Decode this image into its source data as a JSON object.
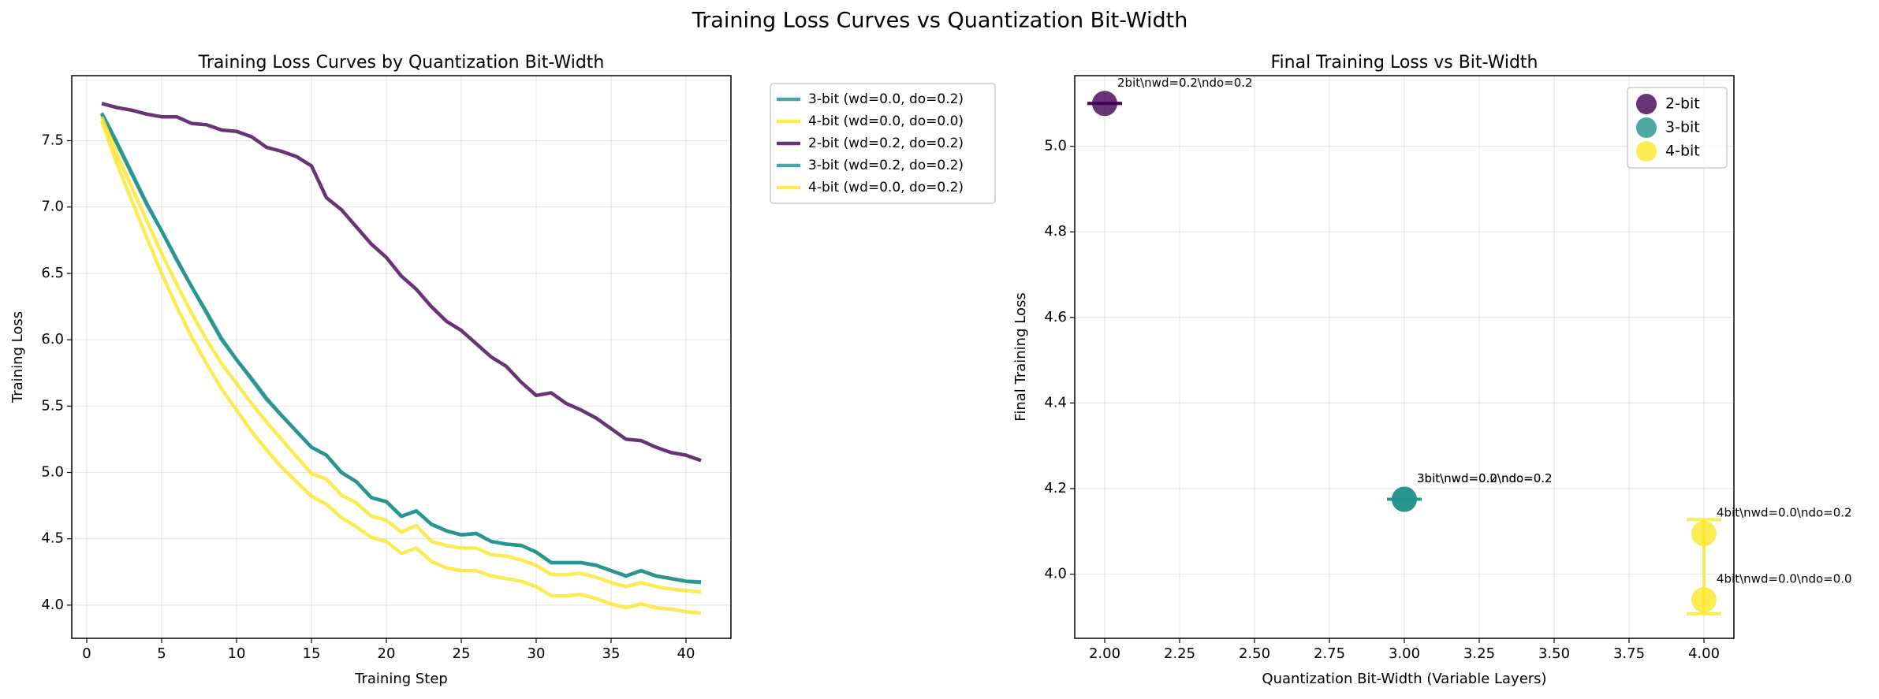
{
  "title": "Training Loss Curves vs Quantization Bit-Width",
  "chart_data": [
    {
      "type": "line",
      "title": "Training Loss Curves by Quantization Bit-Width",
      "xlabel": "Training Step",
      "ylabel": "Training Loss",
      "x": [
        1,
        2,
        3,
        4,
        5,
        6,
        7,
        8,
        9,
        10,
        11,
        12,
        13,
        14,
        15,
        16,
        17,
        18,
        19,
        20,
        21,
        22,
        23,
        24,
        25,
        26,
        27,
        28,
        29,
        30,
        31,
        32,
        33,
        34,
        35,
        36,
        37,
        38,
        39,
        40,
        41
      ],
      "xlim": [
        -1,
        43
      ],
      "ylim": [
        3.75,
        7.99
      ],
      "xticks": [
        0,
        5,
        10,
        15,
        20,
        25,
        30,
        35,
        40
      ],
      "yticks": [
        {
          "value": 4,
          "label": "4.0"
        },
        4.5,
        {
          "value": 5,
          "label": "5.0"
        },
        5.5,
        {
          "value": 6,
          "label": "6.0"
        },
        6.5,
        {
          "value": 7,
          "label": "7.0"
        },
        7.5
      ],
      "grid": true,
      "legend": "outside right",
      "series": [
        {
          "name": "3-bit (wd=0.0, do=0.2)",
          "color": "#21918c",
          "values": [
            7.7,
            7.48,
            7.25,
            7.02,
            6.82,
            6.6,
            6.4,
            6.2,
            6.0,
            5.85,
            5.7,
            5.55,
            5.43,
            5.31,
            5.19,
            5.13,
            5.0,
            4.93,
            4.81,
            4.78,
            4.67,
            4.71,
            4.61,
            4.56,
            4.53,
            4.54,
            4.48,
            4.46,
            4.45,
            4.4,
            4.32,
            4.32,
            4.32,
            4.3,
            4.26,
            4.22,
            4.26,
            4.22,
            4.2,
            4.18,
            4.17
          ]
        },
        {
          "name": "4-bit (wd=0.0, do=0.0)",
          "color": "#fde725",
          "values": [
            7.65,
            7.33,
            7.05,
            6.77,
            6.5,
            6.25,
            6.02,
            5.82,
            5.63,
            5.47,
            5.31,
            5.17,
            5.04,
            4.93,
            4.82,
            4.76,
            4.66,
            4.59,
            4.51,
            4.48,
            4.39,
            4.43,
            4.33,
            4.28,
            4.26,
            4.26,
            4.22,
            4.2,
            4.18,
            4.14,
            4.07,
            4.07,
            4.08,
            4.05,
            4.01,
            3.98,
            4.01,
            3.98,
            3.97,
            3.95,
            3.94
          ]
        },
        {
          "name": "2-bit (wd=0.2, do=0.2)",
          "color": "#440154",
          "values": [
            7.78,
            7.75,
            7.73,
            7.7,
            7.68,
            7.68,
            7.63,
            7.62,
            7.58,
            7.57,
            7.53,
            7.45,
            7.42,
            7.38,
            7.31,
            7.07,
            6.98,
            6.85,
            6.72,
            6.62,
            6.48,
            6.38,
            6.25,
            6.14,
            6.07,
            5.97,
            5.87,
            5.8,
            5.68,
            5.58,
            5.6,
            5.52,
            5.47,
            5.41,
            5.33,
            5.25,
            5.24,
            5.19,
            5.15,
            5.13,
            5.09
          ]
        },
        {
          "name": "3-bit (wd=0.2, do=0.2)",
          "color": "#21918c",
          "values": [
            7.71,
            7.49,
            7.26,
            7.03,
            6.82,
            6.61,
            6.4,
            6.21,
            6.01,
            5.85,
            5.71,
            5.56,
            5.43,
            5.31,
            5.19,
            5.13,
            5.0,
            4.93,
            4.81,
            4.78,
            4.67,
            4.71,
            4.61,
            4.56,
            4.53,
            4.54,
            4.48,
            4.46,
            4.45,
            4.4,
            4.32,
            4.32,
            4.32,
            4.3,
            4.26,
            4.22,
            4.26,
            4.22,
            4.2,
            4.18,
            4.175
          ]
        },
        {
          "name": "4-bit (wd=0.0, do=0.2)",
          "color": "#fde725",
          "values": [
            7.68,
            7.4,
            7.15,
            6.9,
            6.65,
            6.42,
            6.2,
            6.0,
            5.82,
            5.67,
            5.52,
            5.38,
            5.25,
            5.12,
            4.99,
            4.95,
            4.83,
            4.77,
            4.67,
            4.64,
            4.55,
            4.6,
            4.48,
            4.45,
            4.43,
            4.43,
            4.38,
            4.37,
            4.34,
            4.3,
            4.23,
            4.23,
            4.24,
            4.21,
            4.17,
            4.14,
            4.17,
            4.14,
            4.12,
            4.11,
            4.1
          ]
        }
      ]
    },
    {
      "type": "scatter",
      "title": "Final Training Loss vs Bit-Width",
      "xlabel": "Quantization Bit-Width (Variable Layers)",
      "ylabel": "Final Training Loss",
      "xlim": [
        1.9,
        4.1
      ],
      "ylim": [
        3.85,
        5.165
      ],
      "xticks": [
        {
          "value": 2,
          "label": "2.00"
        },
        2.25,
        {
          "value": 2.5,
          "label": "2.50"
        },
        2.75,
        {
          "value": 3,
          "label": "3.00"
        },
        3.25,
        {
          "value": 3.5,
          "label": "3.50"
        },
        3.75,
        {
          "value": 4,
          "label": "4.00"
        }
      ],
      "yticks": [
        {
          "value": 4,
          "label": "4.0"
        },
        4.2,
        4.4,
        4.6,
        4.8,
        {
          "value": 5,
          "label": "5.0"
        }
      ],
      "grid": true,
      "legend": "upper right",
      "series": [
        {
          "name": "2-bit",
          "color": "#440154",
          "x": [
            2
          ],
          "values": [
            5.1
          ],
          "labels": [
            "2bit\\nwd=0.2\\ndo=0.2"
          ],
          "mean": 5.1,
          "error": 0
        },
        {
          "name": "3-bit",
          "color": "#21918c",
          "x": [
            3,
            3
          ],
          "values": [
            4.175,
            4.175
          ],
          "labels": [
            "3bit\\nwd=0.0\\ndo=0.2",
            "3bit\\nwd=0.2\\ndo=0.2"
          ],
          "mean": 4.175,
          "error": 0
        },
        {
          "name": "4-bit",
          "color": "#fde725",
          "x": [
            4,
            4
          ],
          "values": [
            4.095,
            3.94
          ],
          "labels": [
            "4bit\\nwd=0.0\\ndo=0.2",
            "4bit\\nwd=0.0\\ndo=0.0"
          ],
          "mean": 4.0175,
          "error": 0.11
        }
      ]
    }
  ]
}
